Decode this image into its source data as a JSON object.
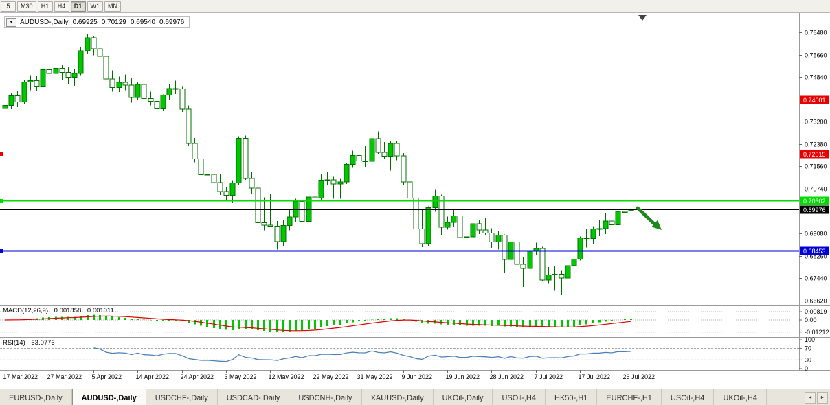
{
  "toolbar": {
    "periods": {
      "labels": [
        "5",
        "M30",
        "H1",
        "H4",
        "D1",
        "W1",
        "MN"
      ],
      "active": "D1"
    }
  },
  "chart_data": {
    "type": "candlestick",
    "title": {
      "symbol": "AUDUSD-,Daily",
      "open": "0.69925",
      "high": "0.70129",
      "low": "0.69540",
      "close": "0.69976"
    },
    "scale": {
      "top": 0.7648,
      "bottom": 0.6662
    },
    "y_axis_labels": [
      "0.76480",
      "0.75660",
      "0.74840",
      "0.73200",
      "0.72380",
      "0.71560",
      "0.70740",
      "0.69080",
      "0.68260",
      "0.67440",
      "0.66620"
    ],
    "x_axis_labels": [
      {
        "text": "17 Mar 2022",
        "i": 0
      },
      {
        "text": "27 Mar 2022",
        "i": 7
      },
      {
        "text": "5 Apr 2022",
        "i": 14
      },
      {
        "text": "14 Apr 2022",
        "i": 21
      },
      {
        "text": "24 Apr 2022",
        "i": 28
      },
      {
        "text": "3 May 2022",
        "i": 35
      },
      {
        "text": "12 May 2022",
        "i": 42
      },
      {
        "text": "22 May 2022",
        "i": 49
      },
      {
        "text": "31 May 2022",
        "i": 56
      },
      {
        "text": "9 Jun 2022",
        "i": 63
      },
      {
        "text": "19 Jun 2022",
        "i": 70
      },
      {
        "text": "28 Jun 2022",
        "i": 77
      },
      {
        "text": "7 Jul 2022",
        "i": 84
      },
      {
        "text": "17 Jul 2022",
        "i": 91
      },
      {
        "text": "26 Jul 2022",
        "i": 98
      }
    ],
    "levels": [
      {
        "price": 0.74001,
        "label": "0.74001",
        "color": "#E80000",
        "width": 1,
        "marker": false
      },
      {
        "price": 0.72015,
        "label": "0.72015",
        "color": "#E80000",
        "width": 1,
        "marker": true
      },
      {
        "price": 0.70302,
        "label": "0.70302",
        "color": "#00DC00",
        "width": 2,
        "marker": true
      },
      {
        "price": 0.69976,
        "label": "0.69976",
        "color": "#000000",
        "width": 1,
        "marker": false
      },
      {
        "price": 0.68453,
        "label": "0.68453",
        "color": "#0000D8",
        "width": 2,
        "marker": true
      }
    ],
    "colors": {
      "bull": "#00C800",
      "bear": "#FFFFFF",
      "outline": "#007000"
    },
    "arrow": {
      "color": "#1E8A1E"
    },
    "candles": [
      [
        0.7368,
        0.7402,
        0.7345,
        0.738
      ],
      [
        0.738,
        0.7425,
        0.7365,
        0.7415
      ],
      [
        0.7415,
        0.7433,
        0.7373,
        0.7392
      ],
      [
        0.7392,
        0.7471,
        0.7385,
        0.7465
      ],
      [
        0.7465,
        0.749,
        0.7435,
        0.747
      ],
      [
        0.747,
        0.7486,
        0.7432,
        0.7448
      ],
      [
        0.7448,
        0.7527,
        0.744,
        0.751
      ],
      [
        0.751,
        0.7537,
        0.7478,
        0.7497
      ],
      [
        0.7497,
        0.754,
        0.747,
        0.7516
      ],
      [
        0.7516,
        0.7528,
        0.7473,
        0.75
      ],
      [
        0.75,
        0.752,
        0.7459,
        0.7483
      ],
      [
        0.7483,
        0.7513,
        0.745,
        0.7497
      ],
      [
        0.7497,
        0.7593,
        0.749,
        0.758
      ],
      [
        0.758,
        0.764,
        0.757,
        0.7628
      ],
      [
        0.7628,
        0.7636,
        0.7563,
        0.7587
      ],
      [
        0.7587,
        0.7625,
        0.754,
        0.756
      ],
      [
        0.756,
        0.7584,
        0.746,
        0.7477
      ],
      [
        0.7477,
        0.7508,
        0.743,
        0.7445
      ],
      [
        0.7445,
        0.7485,
        0.7428,
        0.7464
      ],
      [
        0.7464,
        0.7493,
        0.7435,
        0.7454
      ],
      [
        0.7454,
        0.7479,
        0.739,
        0.7408
      ],
      [
        0.7408,
        0.7465,
        0.74,
        0.7456
      ],
      [
        0.7456,
        0.747,
        0.7398,
        0.7405
      ],
      [
        0.7405,
        0.743,
        0.738,
        0.7395
      ],
      [
        0.7395,
        0.7423,
        0.7343,
        0.7367
      ],
      [
        0.7367,
        0.742,
        0.736,
        0.7417
      ],
      [
        0.7417,
        0.7458,
        0.74,
        0.7441
      ],
      [
        0.7441,
        0.747,
        0.7421,
        0.744
      ],
      [
        0.744,
        0.7448,
        0.7355,
        0.7365
      ],
      [
        0.7365,
        0.738,
        0.723,
        0.7239
      ],
      [
        0.7239,
        0.726,
        0.717,
        0.7183
      ],
      [
        0.7183,
        0.7205,
        0.7118,
        0.7125
      ],
      [
        0.7125,
        0.718,
        0.7098,
        0.7126
      ],
      [
        0.7126,
        0.7137,
        0.7055,
        0.7096
      ],
      [
        0.7096,
        0.7129,
        0.705,
        0.7063
      ],
      [
        0.7063,
        0.7078,
        0.7029,
        0.7049
      ],
      [
        0.7049,
        0.7105,
        0.7023,
        0.7095
      ],
      [
        0.7095,
        0.7266,
        0.7088,
        0.7259
      ],
      [
        0.7259,
        0.7268,
        0.7106,
        0.7111
      ],
      [
        0.7111,
        0.7136,
        0.7055,
        0.7075
      ],
      [
        0.7075,
        0.7086,
        0.6945,
        0.6948
      ],
      [
        0.6948,
        0.7042,
        0.692,
        0.694
      ],
      [
        0.694,
        0.7053,
        0.6932,
        0.6935
      ],
      [
        0.6935,
        0.6955,
        0.685,
        0.6879
      ],
      [
        0.6879,
        0.6958,
        0.6862,
        0.6938
      ],
      [
        0.6938,
        0.6997,
        0.692,
        0.697
      ],
      [
        0.697,
        0.7037,
        0.6952,
        0.7026
      ],
      [
        0.7026,
        0.7046,
        0.6941,
        0.6953
      ],
      [
        0.6953,
        0.7072,
        0.6945,
        0.7043
      ],
      [
        0.7043,
        0.7073,
        0.7015,
        0.7039
      ],
      [
        0.7039,
        0.7127,
        0.703,
        0.7105
      ],
      [
        0.7105,
        0.7133,
        0.7087,
        0.7106
      ],
      [
        0.7106,
        0.7117,
        0.7037,
        0.7091
      ],
      [
        0.7091,
        0.711,
        0.7036,
        0.7098
      ],
      [
        0.7098,
        0.7168,
        0.7091,
        0.7163
      ],
      [
        0.7163,
        0.7213,
        0.715,
        0.7195
      ],
      [
        0.7195,
        0.7203,
        0.7137,
        0.7175
      ],
      [
        0.7175,
        0.7229,
        0.7151,
        0.7174
      ],
      [
        0.7174,
        0.7263,
        0.7155,
        0.7257
      ],
      [
        0.7257,
        0.7283,
        0.72,
        0.7207
      ],
      [
        0.7207,
        0.7245,
        0.7182,
        0.7193
      ],
      [
        0.7193,
        0.7248,
        0.714,
        0.7239
      ],
      [
        0.7239,
        0.7247,
        0.7178,
        0.7194
      ],
      [
        0.7194,
        0.7204,
        0.7086,
        0.7098
      ],
      [
        0.7098,
        0.7119,
        0.7033,
        0.7039
      ],
      [
        0.7039,
        0.707,
        0.6911,
        0.6925
      ],
      [
        0.6925,
        0.6996,
        0.6859,
        0.6871
      ],
      [
        0.6871,
        0.7009,
        0.6861,
        0.7004
      ],
      [
        0.7004,
        0.7069,
        0.6989,
        0.7046
      ],
      [
        0.7046,
        0.7051,
        0.6901,
        0.6932
      ],
      [
        0.6932,
        0.6971,
        0.6923,
        0.695
      ],
      [
        0.695,
        0.6996,
        0.6934,
        0.6973
      ],
      [
        0.6973,
        0.6989,
        0.688,
        0.6894
      ],
      [
        0.6894,
        0.6927,
        0.6866,
        0.6897
      ],
      [
        0.6897,
        0.6957,
        0.6887,
        0.6944
      ],
      [
        0.6944,
        0.696,
        0.6907,
        0.6922
      ],
      [
        0.6922,
        0.6965,
        0.6902,
        0.691
      ],
      [
        0.691,
        0.6928,
        0.6855,
        0.6878
      ],
      [
        0.6878,
        0.6919,
        0.685,
        0.6903
      ],
      [
        0.6903,
        0.6905,
        0.6764,
        0.6813
      ],
      [
        0.6813,
        0.6895,
        0.6807,
        0.6878
      ],
      [
        0.6878,
        0.6896,
        0.6762,
        0.6796
      ],
      [
        0.6796,
        0.6822,
        0.6712,
        0.678
      ],
      [
        0.678,
        0.6853,
        0.6772,
        0.6843
      ],
      [
        0.6843,
        0.6875,
        0.6828,
        0.6854
      ],
      [
        0.6854,
        0.686,
        0.6732,
        0.6738
      ],
      [
        0.6738,
        0.6785,
        0.6724,
        0.6757
      ],
      [
        0.6757,
        0.6788,
        0.6698,
        0.6759
      ],
      [
        0.6759,
        0.6772,
        0.6682,
        0.6745
      ],
      [
        0.6745,
        0.6808,
        0.6728,
        0.679
      ],
      [
        0.679,
        0.6843,
        0.6766,
        0.6814
      ],
      [
        0.6814,
        0.6898,
        0.681,
        0.6893
      ],
      [
        0.6893,
        0.6925,
        0.6858,
        0.689
      ],
      [
        0.689,
        0.6935,
        0.6869,
        0.6925
      ],
      [
        0.6925,
        0.6958,
        0.6899,
        0.6927
      ],
      [
        0.6927,
        0.6985,
        0.6906,
        0.6954
      ],
      [
        0.6954,
        0.6969,
        0.6911,
        0.6941
      ],
      [
        0.6941,
        0.7013,
        0.6931,
        0.699
      ],
      [
        0.699,
        0.7032,
        0.6958,
        0.6986
      ],
      [
        0.69925,
        0.70129,
        0.6954,
        0.69976
      ]
    ],
    "indicators": {
      "macd": {
        "label": "MACD(12,26,9)",
        "value_main": "0.001858",
        "value_signal": "0.001011",
        "axis_labels": [
          "0.00819",
          "0.00",
          "-0.01212"
        ],
        "fast": 12,
        "slow": 26,
        "signal": 9,
        "histogram_color": "#00C800",
        "signal_color": "#E00000"
      },
      "rsi": {
        "label": "RSI(14)",
        "value": "63.0776",
        "period": 14,
        "axis_labels": [
          "100",
          "70",
          "30",
          "0"
        ],
        "levels": [
          70,
          30
        ],
        "line_color": "#4D82B8"
      }
    }
  },
  "icons": {
    "one_click_arrow": "▼",
    "tabs_scroll_left": "◄",
    "tabs_scroll_right": "►"
  },
  "tabs": {
    "items": [
      {
        "label": "EURUSD-,Daily",
        "active": false
      },
      {
        "label": "AUDUSD-,Daily",
        "active": true
      },
      {
        "label": "USDCHF-,Daily",
        "active": false
      },
      {
        "label": "USDCAD-,Daily",
        "active": false
      },
      {
        "label": "USDCNH-,Daily",
        "active": false
      },
      {
        "label": "XAUUSD-,Daily",
        "active": false
      },
      {
        "label": "UKOil-,Daily",
        "active": false
      },
      {
        "label": "USOil-,H4",
        "active": false
      },
      {
        "label": "HK50-,H1",
        "active": false
      },
      {
        "label": "EURCHF-,H1",
        "active": false
      },
      {
        "label": "USOil-,H4",
        "active": false
      },
      {
        "label": "UKOil-,H4",
        "active": false
      }
    ]
  }
}
